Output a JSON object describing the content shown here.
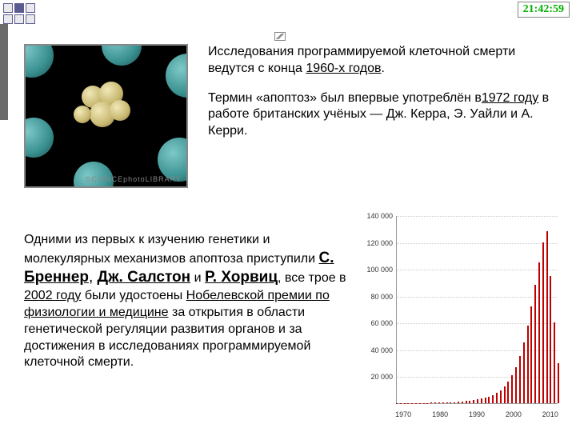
{
  "clock": "21:42:59",
  "watermark": "SCIENCEphotoLIBRARY",
  "para1_a": "Исследования программируемой клеточной смерти ведутся с конца ",
  "para1_link": "1960-х годов",
  "para1_b": ".",
  "para2_a": " Термин «апоптоз» был впервые употреблён в",
  "para2_link": "1972 году",
  "para2_b": " в работе британских учёных — Дж. Керра, Э. Уайли и А. Керри.",
  "para3_a": "Одними из первых к изучению генетики и молекулярных механизмов апоптоза приступили ",
  "name1": "С. Бреннер",
  "sep1": ", ",
  "name2": "Дж. Салстон",
  "sep2": " и ",
  "name3": "Р. Хорвиц",
  "para3_b": ", все трое в ",
  "year2002": "2002 году",
  "para3_c": " были удостоены ",
  "nobel": "Нобелевской премии по физиологии и медицине",
  "para3_d": " за открытия в области генетической регуляции развития органов и за достижения в исследованиях программируемой клеточной смерти.",
  "chart": {
    "ymax": 140000,
    "ylabels": [
      "140 000",
      "120 000",
      "100 000",
      "80 000",
      "60 000",
      "40 000",
      "20 000"
    ],
    "xstart": 1968,
    "xend": 2012,
    "xlabels": [
      1970,
      1980,
      1990,
      2000,
      2010
    ],
    "bar_color": "#c00000",
    "values": [
      50,
      80,
      100,
      120,
      150,
      180,
      200,
      250,
      300,
      350,
      400,
      500,
      600,
      700,
      800,
      900,
      1000,
      1200,
      1500,
      1800,
      2200,
      2700,
      3300,
      4000,
      5000,
      6200,
      7800,
      9800,
      12500,
      16000,
      21000,
      27000,
      35000,
      45000,
      58000,
      72000,
      88000,
      105000,
      120000,
      128000,
      95000,
      60000,
      30000
    ]
  }
}
